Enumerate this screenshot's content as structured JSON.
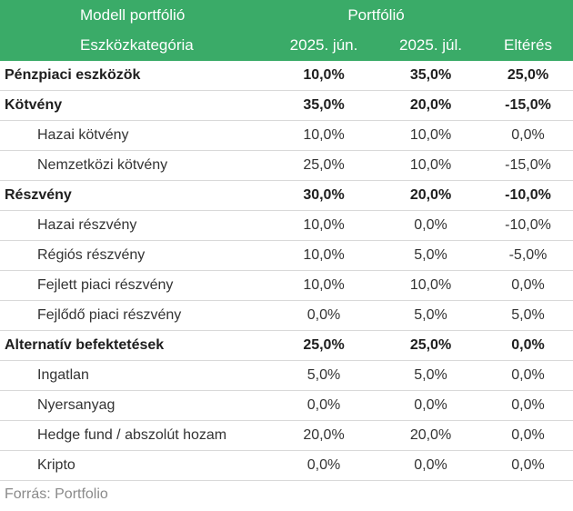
{
  "header": {
    "model_label": "Modell portfólió",
    "portfolio_label": "Portfólió",
    "category_label": "Eszközkategória",
    "col_jun": "2025. jún.",
    "col_jul": "2025. júl.",
    "col_diff": "Eltérés"
  },
  "rows": [
    {
      "name": "Pénzpiaci eszközök",
      "jun": "10,0%",
      "jul": "35,0%",
      "diff": "25,0%"
    },
    {
      "name": "Kötvény",
      "jun": "35,0%",
      "jul": "20,0%",
      "diff": "-15,0%"
    },
    {
      "name": "Hazai kötvény",
      "jun": "10,0%",
      "jul": "10,0%",
      "diff": "0,0%"
    },
    {
      "name": "Nemzetközi kötvény",
      "jun": "25,0%",
      "jul": "10,0%",
      "diff": "-15,0%"
    },
    {
      "name": "Részvény",
      "jun": "30,0%",
      "jul": "20,0%",
      "diff": "-10,0%"
    },
    {
      "name": "Hazai részvény",
      "jun": "10,0%",
      "jul": "0,0%",
      "diff": "-10,0%"
    },
    {
      "name": "Régiós részvény",
      "jun": "10,0%",
      "jul": "5,0%",
      "diff": "-5,0%"
    },
    {
      "name": "Fejlett piaci részvény",
      "jun": "10,0%",
      "jul": "10,0%",
      "diff": "0,0%"
    },
    {
      "name": "Fejlődő piaci részvény",
      "jun": "0,0%",
      "jul": "5,0%",
      "diff": "5,0%"
    },
    {
      "name": "Alternatív befektetések",
      "jun": "25,0%",
      "jul": "25,0%",
      "diff": "0,0%"
    },
    {
      "name": "Ingatlan",
      "jun": "5,0%",
      "jul": "5,0%",
      "diff": "0,0%"
    },
    {
      "name": "Nyersanyag",
      "jun": "0,0%",
      "jul": "0,0%",
      "diff": "0,0%"
    },
    {
      "name": "Hedge fund / abszolút hozam",
      "jun": "20,0%",
      "jul": "20,0%",
      "diff": "0,0%"
    },
    {
      "name": "Kripto",
      "jun": "0,0%",
      "jul": "0,0%",
      "diff": "0,0%"
    }
  ],
  "source": "Forrás: Portfolio",
  "colors": {
    "header_bg": "#3aab68",
    "header_text": "#ffffff",
    "row_divider": "#d9d9d9",
    "source_text": "#8a8a8a"
  }
}
